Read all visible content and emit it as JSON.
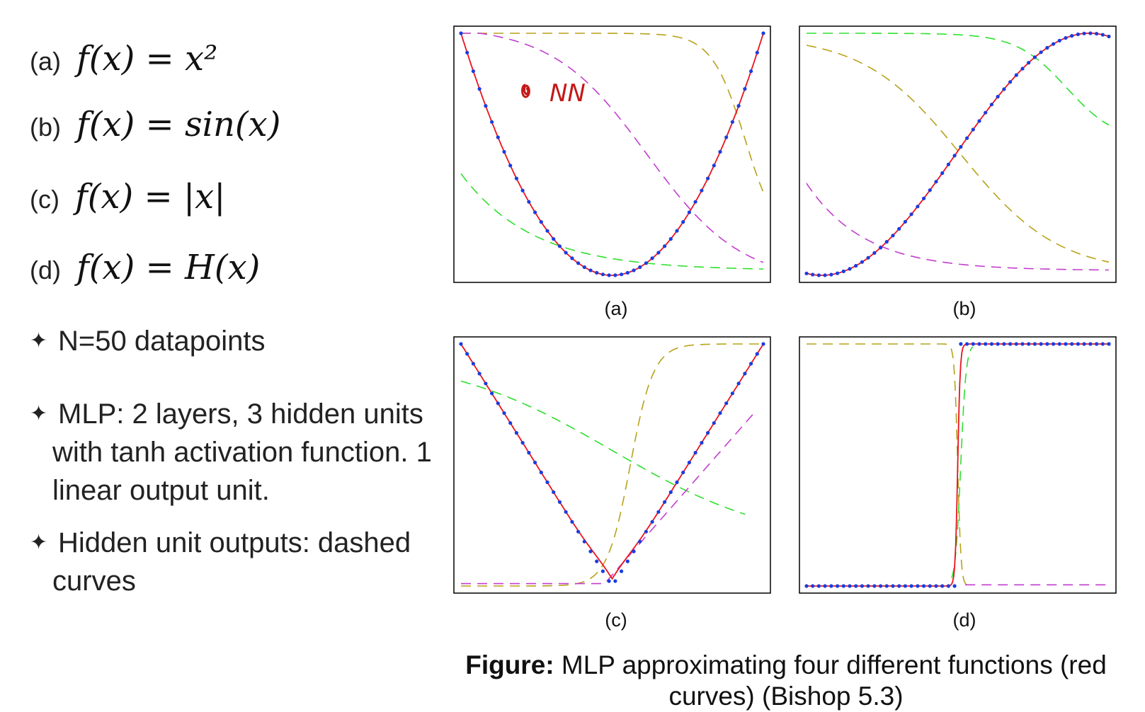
{
  "functions": [
    {
      "tag": "(a)",
      "expr": "f(x) = x²"
    },
    {
      "tag": "(b)",
      "expr": "f(x) = sin(x)"
    },
    {
      "tag": "(c)",
      "expr": "f(x) = |x|"
    },
    {
      "tag": "(d)",
      "expr": "f(x) = H(x)"
    }
  ],
  "bullets": {
    "b1": "N=50 datapoints",
    "b2_l1": "MLP: 2 layers, 3 hidden units",
    "b2_l2": "with tanh activation function. 1",
    "b2_l3": "linear output unit.",
    "b3_l1": "Hidden unit outputs: dashed",
    "b3_l2": "curves"
  },
  "bullet_icon": "four-point-star-icon",
  "annotation": "NN",
  "caption": {
    "bold": "Figure:",
    "text": " MLP approximating four different functions (red curves) (Bishop 5.3)"
  },
  "colors": {
    "fit": "#e8141e",
    "data": "#1a3de0",
    "hidden1": "#2ee02e",
    "hidden2": "#b8a21a",
    "hidden3": "#c33dd0",
    "annotation": "#c41818"
  },
  "chart_data": [
    {
      "label": "(a)",
      "type": "line",
      "function": "x^2",
      "n_points": 50,
      "xlim": [
        -1,
        1
      ],
      "ylim": [
        0,
        1
      ],
      "axes_ticks": false,
      "series": [
        {
          "role": "data-points",
          "x": [
            -1,
            0,
            1
          ],
          "y": [
            1,
            0,
            1
          ]
        },
        {
          "role": "network-output",
          "x": [
            -1,
            0,
            1
          ],
          "y": [
            1,
            0,
            1
          ]
        }
      ]
    },
    {
      "label": "(b)",
      "type": "line",
      "function": "sin(x)",
      "n_points": 50,
      "axes_ticks": false,
      "series": [
        {
          "role": "data-points"
        },
        {
          "role": "network-output"
        }
      ]
    },
    {
      "label": "(c)",
      "type": "line",
      "function": "|x|",
      "n_points": 50,
      "xlim": [
        -1,
        1
      ],
      "ylim": [
        0,
        1
      ],
      "axes_ticks": false,
      "series": [
        {
          "role": "data-points",
          "x": [
            -1,
            0,
            1
          ],
          "y": [
            1,
            0,
            1
          ]
        },
        {
          "role": "network-output",
          "x": [
            -1,
            0,
            1
          ],
          "y": [
            1,
            0,
            1
          ]
        }
      ]
    },
    {
      "label": "(d)",
      "type": "line",
      "function": "H(x)",
      "n_points": 50,
      "xlim": [
        -1,
        1
      ],
      "ylim": [
        0,
        1
      ],
      "axes_ticks": false,
      "series": [
        {
          "role": "data-points",
          "x": [
            -1,
            0,
            1
          ],
          "y": [
            0,
            1,
            1
          ]
        },
        {
          "role": "network-output",
          "x": [
            -1,
            0,
            1
          ],
          "y": [
            0,
            1,
            1
          ]
        }
      ]
    }
  ]
}
